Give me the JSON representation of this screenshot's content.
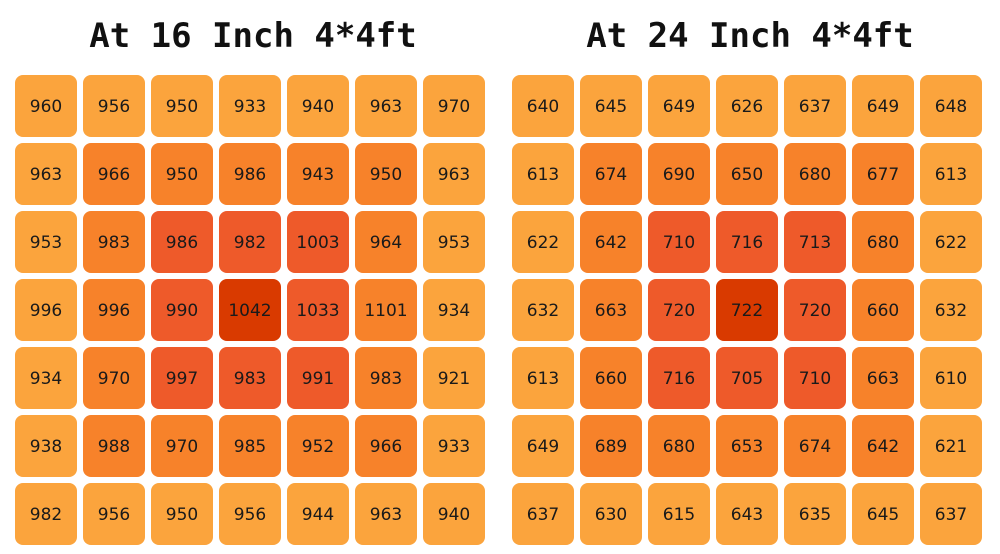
{
  "chart_data": [
    {
      "type": "heatmap",
      "title": "At 16 Inch 4*4ft",
      "rows": [
        [
          960,
          956,
          950,
          933,
          940,
          963,
          970
        ],
        [
          963,
          966,
          950,
          986,
          943,
          950,
          963
        ],
        [
          953,
          983,
          986,
          982,
          1003,
          964,
          953
        ],
        [
          996,
          996,
          990,
          1042,
          1033,
          1101,
          934
        ],
        [
          934,
          970,
          997,
          983,
          991,
          983,
          921
        ],
        [
          938,
          988,
          970,
          985,
          952,
          966,
          933
        ],
        [
          982,
          956,
          950,
          956,
          944,
          963,
          940
        ]
      ],
      "zones": [
        [
          1,
          1,
          1,
          1,
          1,
          1,
          1
        ],
        [
          1,
          2,
          2,
          2,
          2,
          2,
          1
        ],
        [
          1,
          2,
          3,
          3,
          3,
          2,
          1
        ],
        [
          1,
          2,
          3,
          4,
          3,
          2,
          1
        ],
        [
          1,
          2,
          3,
          3,
          3,
          2,
          1
        ],
        [
          1,
          2,
          2,
          2,
          2,
          2,
          1
        ],
        [
          1,
          1,
          1,
          1,
          1,
          1,
          1
        ]
      ]
    },
    {
      "type": "heatmap",
      "title": "At 24 Inch 4*4ft",
      "rows": [
        [
          640,
          645,
          649,
          626,
          637,
          649,
          648
        ],
        [
          613,
          674,
          690,
          650,
          680,
          677,
          613
        ],
        [
          622,
          642,
          710,
          716,
          713,
          680,
          622
        ],
        [
          632,
          663,
          720,
          722,
          720,
          660,
          632
        ],
        [
          613,
          660,
          716,
          705,
          710,
          663,
          610
        ],
        [
          649,
          689,
          680,
          653,
          674,
          642,
          621
        ],
        [
          637,
          630,
          615,
          643,
          635,
          645,
          637
        ]
      ],
      "zones": [
        [
          1,
          1,
          1,
          1,
          1,
          1,
          1
        ],
        [
          1,
          2,
          2,
          2,
          2,
          2,
          1
        ],
        [
          1,
          2,
          3,
          3,
          3,
          2,
          1
        ],
        [
          1,
          2,
          3,
          4,
          3,
          2,
          1
        ],
        [
          1,
          2,
          3,
          3,
          3,
          2,
          1
        ],
        [
          1,
          2,
          2,
          2,
          2,
          2,
          1
        ],
        [
          1,
          1,
          1,
          1,
          1,
          1,
          1
        ]
      ]
    }
  ],
  "colors": {
    "zone_1": "#fba43d",
    "zone_2": "#f7822a",
    "zone_3": "#ee5a2a",
    "zone_4": "#d93a00",
    "text": "#1a1a1a"
  }
}
